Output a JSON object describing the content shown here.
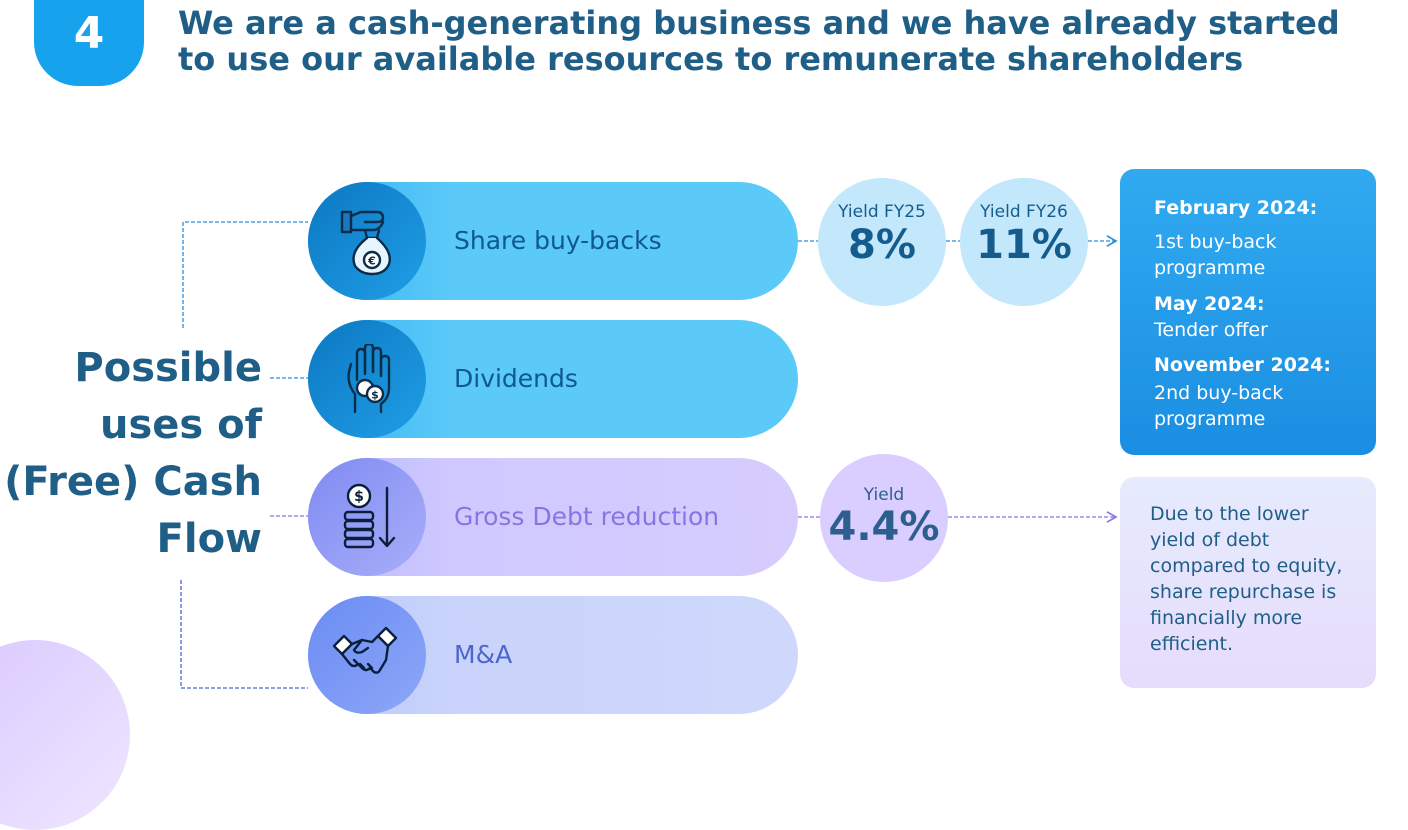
{
  "header": {
    "badge_number": "4",
    "title_line1": "We are a cash-generating business and we have already started",
    "title_line2": "to use our available resources to remunerate shareholders"
  },
  "left_title": {
    "line1": "Possible",
    "line2": "uses of",
    "line3": "(Free) Cash",
    "line4": "Flow"
  },
  "uses": [
    {
      "label": "Share buy-backs",
      "icon": "money-bag-euro-icon"
    },
    {
      "label": "Dividends",
      "icon": "hand-coins-icon"
    },
    {
      "label": "Gross Debt reduction",
      "icon": "coin-stack-down-icon"
    },
    {
      "label": "M&A",
      "icon": "handshake-icon"
    }
  ],
  "yields": {
    "buyback_fy25": {
      "caption": "Yield FY25",
      "value": "8%"
    },
    "buyback_fy26": {
      "caption": "Yield FY26",
      "value": "11%"
    },
    "debt": {
      "caption": "Yield",
      "value": "4.4%"
    }
  },
  "timeline": [
    {
      "date": "February 2024:",
      "description": "1st buy-back programme"
    },
    {
      "date": "May 2024:",
      "description": "Tender offer"
    },
    {
      "date": "November 2024:",
      "description": "2nd buy-back programme"
    }
  ],
  "note": "Due to the lower yield of debt compared to equity, share repurchase is financially more efficient.",
  "colors": {
    "badge": "#17a2ee",
    "title": "#1f5e86",
    "blue_pill": "#5ccaf9",
    "purple_pill": "#cfc9ff",
    "lavender_pill": "#c9d3fb",
    "timeline_box": "#1a8ee2",
    "note_box": "#e6e3fc"
  }
}
